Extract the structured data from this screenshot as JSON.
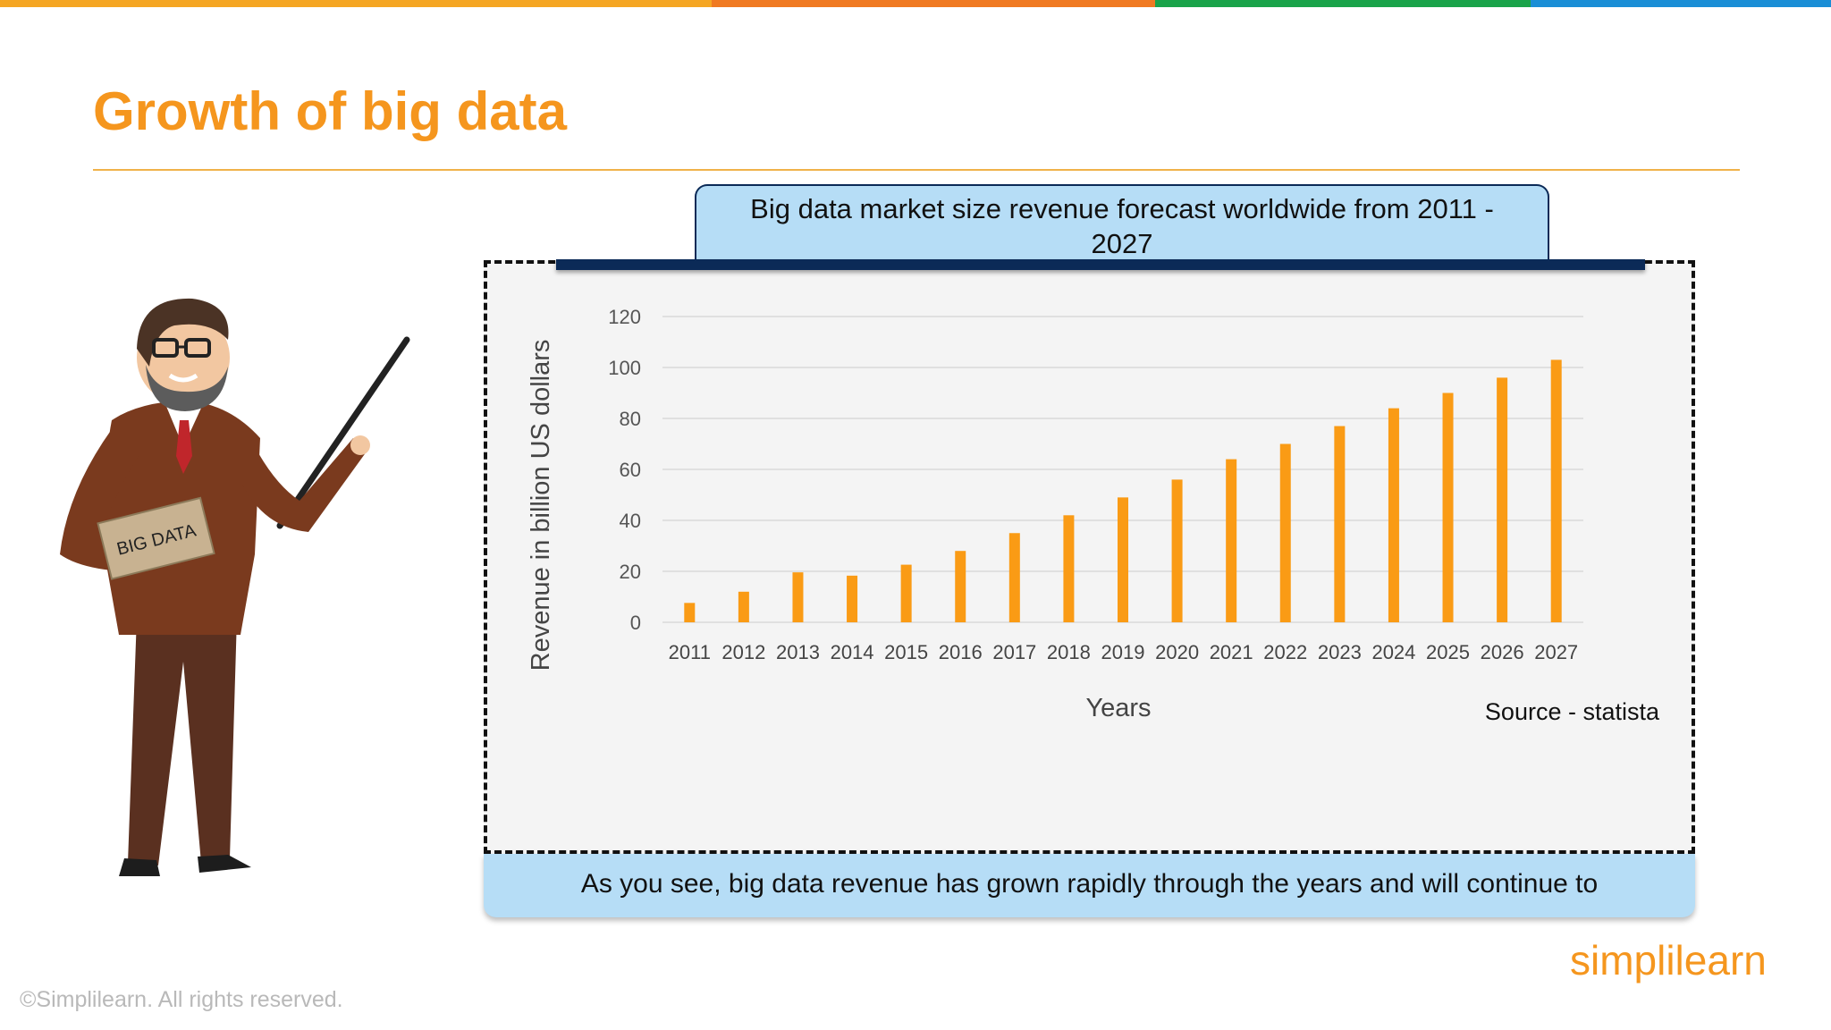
{
  "slide": {
    "title": "Growth of big data",
    "stripe_colors": [
      "#f5a623",
      "#f07a22",
      "#1aa34a",
      "#1a8ed6"
    ]
  },
  "chart_data": {
    "type": "bar",
    "title": "Big data market size revenue forecast worldwide from 2011 - 2027",
    "xlabel": "Years",
    "ylabel": "Revenue in billion US dollars",
    "categories": [
      "2011",
      "2012",
      "2013",
      "2014",
      "2015",
      "2016",
      "2017",
      "2018",
      "2019",
      "2020",
      "2021",
      "2022",
      "2023",
      "2024",
      "2025",
      "2026",
      "2027"
    ],
    "values": [
      7.6,
      12,
      19.6,
      18.3,
      22.6,
      28,
      35,
      42,
      49,
      56,
      64,
      70,
      77,
      84,
      90,
      96,
      103
    ],
    "ylim": [
      0,
      120
    ],
    "yticks": [
      0,
      20,
      40,
      60,
      80,
      100,
      120
    ],
    "grid": true,
    "bar_color": "#fa9b15",
    "source": "Source - statista"
  },
  "caption": "As you see, big data revenue has grown rapidly through the years and will continue to",
  "presenter": {
    "sign_text": "BIG DATA"
  },
  "footer": {
    "copyright": "©Simplilearn. All rights reserved.",
    "logo_text": "simplilearn",
    "logo_color": "#f5961e"
  }
}
